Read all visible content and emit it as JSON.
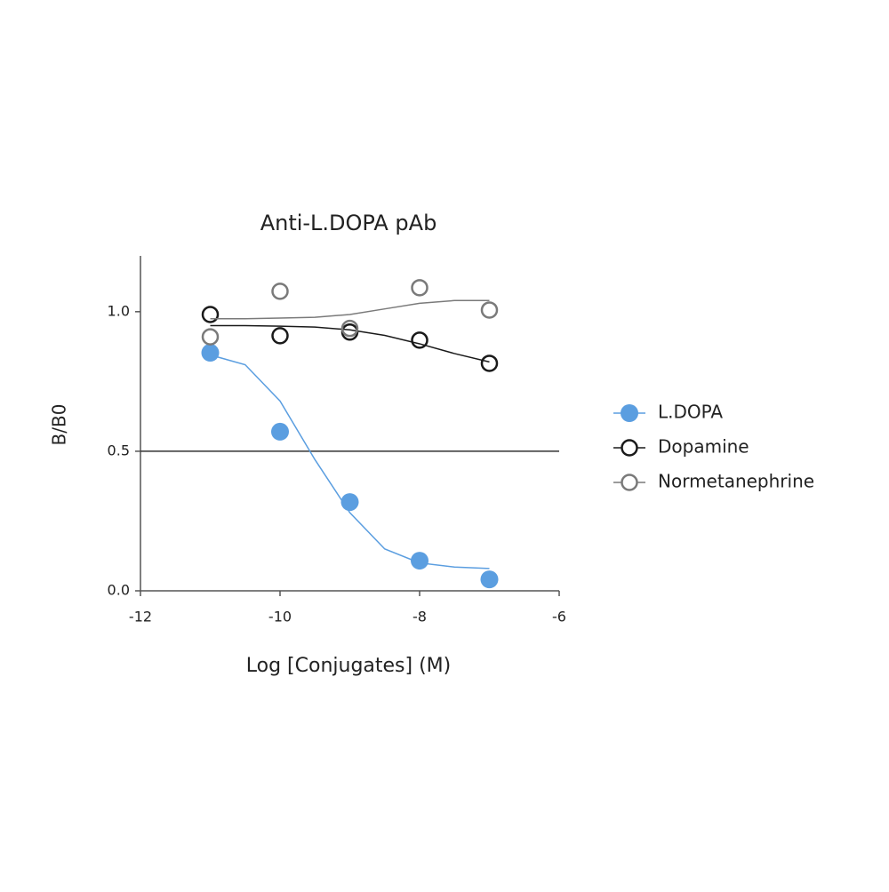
{
  "chart_data": {
    "type": "scatter",
    "title": "Anti-L.DOPA pAb",
    "xlabel": "Log [Conjugates] (M)",
    "ylabel": "B/B0",
    "xlim": [
      -12,
      -6
    ],
    "xticks": [
      -12,
      -10,
      -8,
      -6
    ],
    "ylim": [
      0,
      1.2
    ],
    "yticks": [
      {
        "value": 0,
        "label": "0.0"
      },
      0.5,
      {
        "value": 1,
        "label": "1.0"
      }
    ],
    "hline": 0.5,
    "legend": "right",
    "x": [
      -11,
      -10,
      -9,
      -8,
      -7
    ],
    "fit_x": [
      -11,
      -10.5,
      -10,
      -9.5,
      -9,
      -8.5,
      -8,
      -7.5,
      -7
    ],
    "series": [
      {
        "name": "L.DOPA",
        "color": "#5b9ee0",
        "filled": true,
        "values": [
          0.853,
          0.57,
          0.318,
          0.108,
          0.041
        ],
        "fit_values": [
          0.845,
          0.81,
          0.68,
          0.47,
          0.28,
          0.15,
          0.1,
          0.085,
          0.08
        ]
      },
      {
        "name": "Dopamine",
        "color": "#1a1a1a",
        "filled": false,
        "values": [
          0.99,
          0.914,
          0.927,
          0.898,
          0.815
        ],
        "fit_values": [
          0.95,
          0.95,
          0.948,
          0.945,
          0.935,
          0.915,
          0.885,
          0.85,
          0.82
        ]
      },
      {
        "name": "Normetanephrine",
        "color": "#7a7a7a",
        "filled": false,
        "values": [
          0.91,
          1.073,
          0.94,
          1.086,
          1.006
        ],
        "fit_values": [
          0.975,
          0.975,
          0.977,
          0.98,
          0.99,
          1.01,
          1.03,
          1.04,
          1.04
        ]
      }
    ]
  }
}
